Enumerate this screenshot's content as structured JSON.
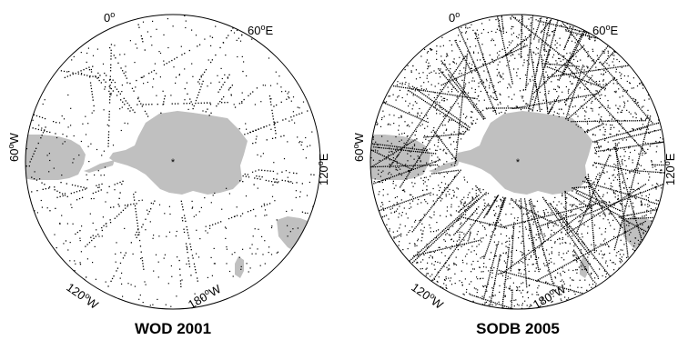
{
  "colors": {
    "land": "#c0c0c0",
    "obs": "#000000",
    "frame": "#000000",
    "ocean": "#ffffff"
  },
  "panels": [
    {
      "title": "WOD 2001",
      "density": "sparse",
      "labels": {
        "lon_0": {
          "num": "0",
          "deg": "o"
        },
        "lon_60e": {
          "num": "60",
          "deg": "o",
          "dir": "E"
        },
        "lon_120e": {
          "num": "120",
          "deg": "o",
          "dir": "E"
        },
        "lon_60w": {
          "num": "60",
          "deg": "o",
          "dir": "W"
        },
        "lon_120w": {
          "num": "120",
          "deg": "o",
          "dir": "W"
        },
        "lon_180w": {
          "num": "180",
          "deg": "o",
          "dir": "W"
        }
      }
    },
    {
      "title": "SODB 2005",
      "density": "dense",
      "labels": {
        "lon_0": {
          "num": "0",
          "deg": "o"
        },
        "lon_60e": {
          "num": "60",
          "deg": "o",
          "dir": "E"
        },
        "lon_120e": {
          "num": "120",
          "deg": "o",
          "dir": "E"
        },
        "lon_60w": {
          "num": "60",
          "deg": "o",
          "dir": "W"
        },
        "lon_120w": {
          "num": "120",
          "deg": "o",
          "dir": "W"
        },
        "lon_180w": {
          "num": "180",
          "deg": "o",
          "dir": "W"
        }
      }
    }
  ]
}
